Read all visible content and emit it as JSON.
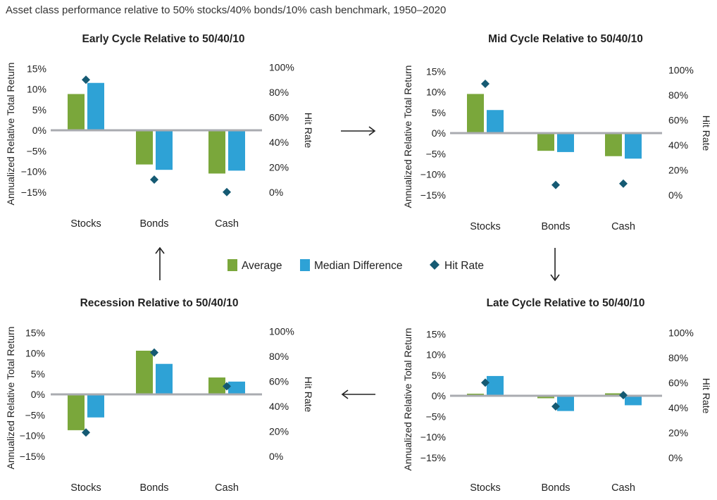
{
  "header": {
    "title": "Asset class performance relative to 50% stocks/40% bonds/10% cash benchmark, 1950–2020"
  },
  "colors": {
    "average": "#7aa73b",
    "median": "#2ea2d6",
    "hit_rate": "#155a73",
    "zero_line": "#a9abb0"
  },
  "legend": {
    "average": "Average",
    "median": "Median Difference",
    "hit_rate": "Hit Rate"
  },
  "axes": {
    "left_label": "Annualized Relative Total Return",
    "right_label": "Hit Rate",
    "left_ticks": [
      "15%",
      "10%",
      "5%",
      "0%",
      "−5%",
      "−10%",
      "−15%"
    ],
    "right_ticks": [
      "100%",
      "80%",
      "60%",
      "40%",
      "20%",
      "0%"
    ]
  },
  "chart_data": [
    {
      "type": "bar",
      "title": "Early Cycle Relative to 50/40/10",
      "categories": [
        "Stocks",
        "Bonds",
        "Cash"
      ],
      "series": [
        {
          "name": "Average",
          "values": [
            8.8,
            -8.3,
            -10.5
          ]
        },
        {
          "name": "Median Difference",
          "values": [
            11.5,
            -9.6,
            -9.8
          ]
        },
        {
          "name": "Hit Rate",
          "axis": "right",
          "values": [
            90,
            10,
            0
          ]
        }
      ],
      "ylim": [
        -15,
        15
      ],
      "y2lim": [
        0,
        100
      ],
      "xlabel": "",
      "ylabel": "Annualized Relative Total Return",
      "y2label": "Hit Rate"
    },
    {
      "type": "bar",
      "title": "Mid Cycle Relative to 50/40/10",
      "categories": [
        "Stocks",
        "Bonds",
        "Cash"
      ],
      "series": [
        {
          "name": "Average",
          "values": [
            9.5,
            -4.3,
            -5.6
          ]
        },
        {
          "name": "Median Difference",
          "values": [
            5.6,
            -4.6,
            -6.2
          ]
        },
        {
          "name": "Hit Rate",
          "axis": "right",
          "values": [
            89,
            8,
            9
          ]
        }
      ],
      "ylim": [
        -15,
        15
      ],
      "y2lim": [
        0,
        100
      ],
      "xlabel": "",
      "ylabel": "Annualized Relative Total Return",
      "y2label": "Hit Rate"
    },
    {
      "type": "bar",
      "title": "Recession Relative to 50/40/10",
      "categories": [
        "Stocks",
        "Bonds",
        "Cash"
      ],
      "series": [
        {
          "name": "Average",
          "values": [
            -8.7,
            10.6,
            4.1
          ]
        },
        {
          "name": "Median Difference",
          "values": [
            -5.6,
            7.4,
            3.1
          ]
        },
        {
          "name": "Hit Rate",
          "axis": "right",
          "values": [
            19,
            83,
            56
          ]
        }
      ],
      "ylim": [
        -15,
        15
      ],
      "y2lim": [
        0,
        100
      ],
      "xlabel": "",
      "ylabel": "Annualized Relative Total Return",
      "y2label": "Hit Rate"
    },
    {
      "type": "bar",
      "title": "Late Cycle Relative to 50/40/10",
      "categories": [
        "Stocks",
        "Bonds",
        "Cash"
      ],
      "series": [
        {
          "name": "Average",
          "values": [
            0.5,
            -0.6,
            0.6
          ]
        },
        {
          "name": "Median Difference",
          "values": [
            4.8,
            -3.7,
            -2.3
          ]
        },
        {
          "name": "Hit Rate",
          "axis": "right",
          "values": [
            60,
            41,
            50
          ]
        }
      ],
      "ylim": [
        -15,
        15
      ],
      "y2lim": [
        0,
        100
      ],
      "xlabel": "",
      "ylabel": "Annualized Relative Total Return",
      "y2label": "Hit Rate"
    }
  ]
}
